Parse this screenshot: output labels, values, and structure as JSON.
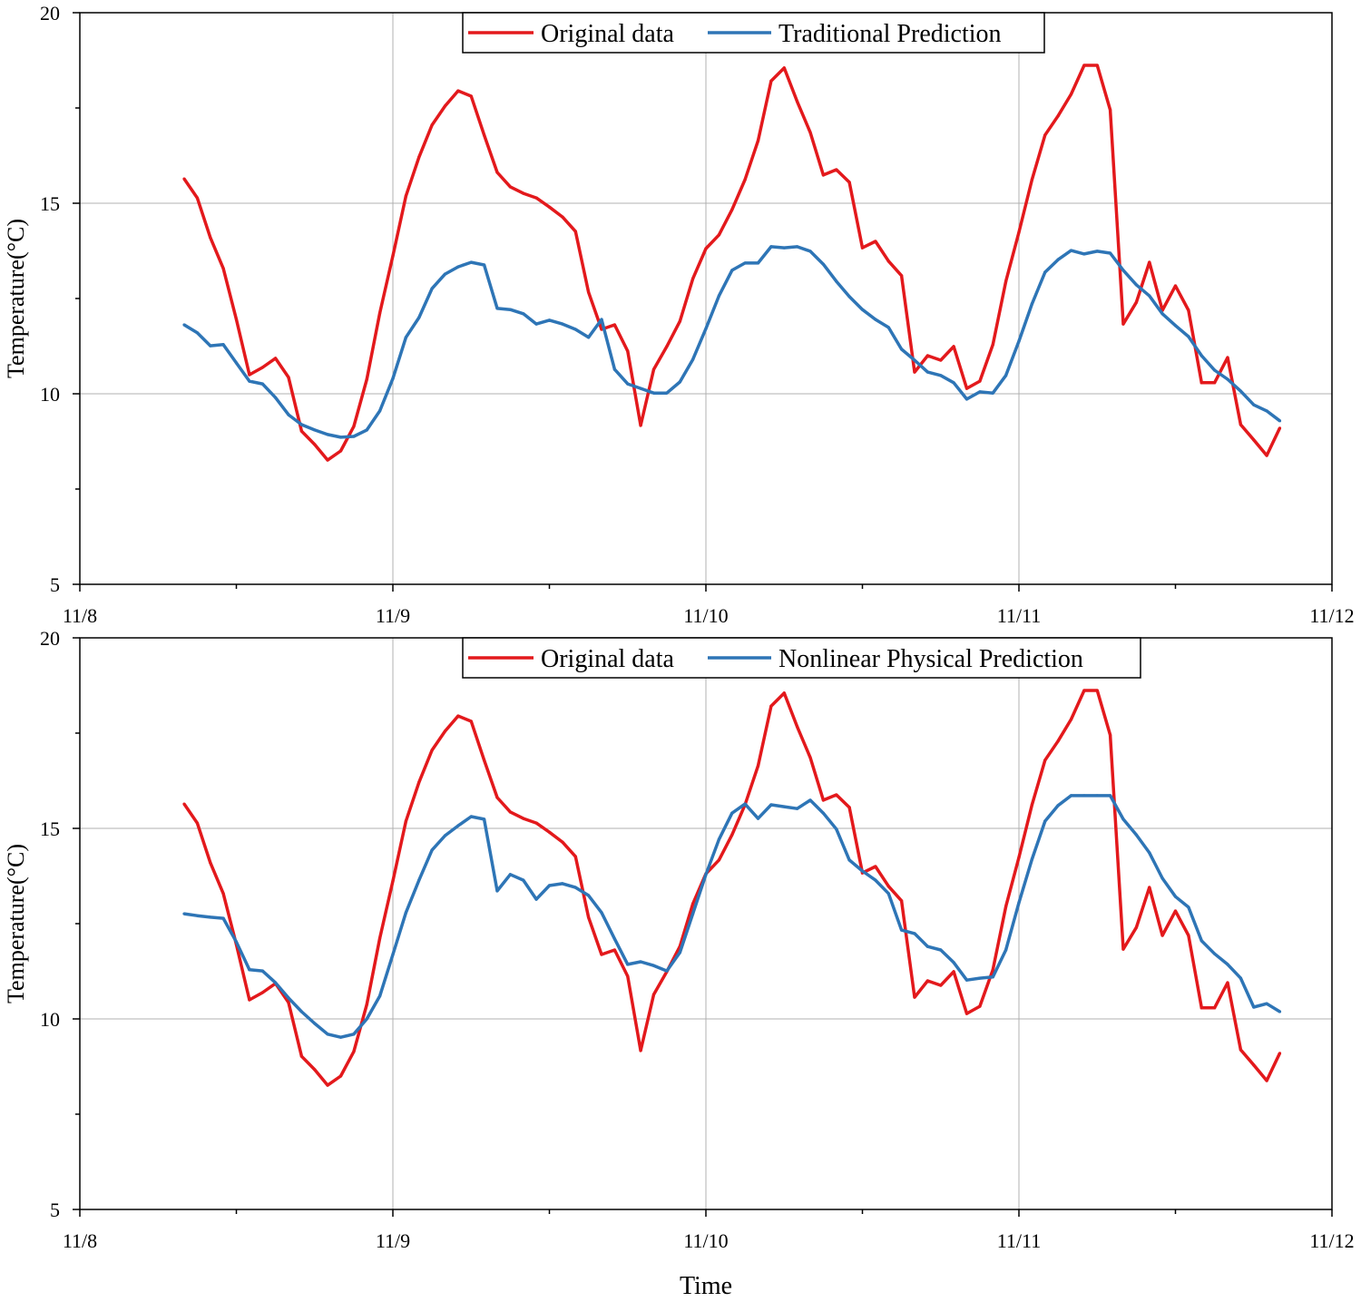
{
  "colors": {
    "original": "#e3191c",
    "prediction": "#2e75b6",
    "grid": "#b0b0b0",
    "axis": "#000000"
  },
  "shared": {
    "ylabel": "Temperature(°C)",
    "xlabel": "Time",
    "x_ticks": [
      "11/8",
      "11/9",
      "11/10",
      "11/11",
      "11/12"
    ],
    "y_ticks": [
      5,
      10,
      15,
      20
    ],
    "ylim": [
      5,
      20
    ],
    "xlim": [
      "11/8 00:00",
      "11/12 00:00"
    ],
    "x": [
      "11/8 08:00",
      "11/8 09:00",
      "11/8 10:00",
      "11/8 11:00",
      "11/8 12:00",
      "11/8 13:00",
      "11/8 14:00",
      "11/8 15:00",
      "11/8 16:00",
      "11/8 17:00",
      "11/8 18:00",
      "11/8 19:00",
      "11/8 20:00",
      "11/8 21:00",
      "11/8 22:00",
      "11/8 23:00",
      "11/9 00:00",
      "11/9 01:00",
      "11/9 02:00",
      "11/9 03:00",
      "11/9 04:00",
      "11/9 05:00",
      "11/9 06:00",
      "11/9 07:00",
      "11/9 08:00",
      "11/9 09:00",
      "11/9 10:00",
      "11/9 11:00",
      "11/9 12:00",
      "11/9 13:00",
      "11/9 14:00",
      "11/9 15:00",
      "11/9 16:00",
      "11/9 17:00",
      "11/9 18:00",
      "11/9 19:00",
      "11/9 20:00",
      "11/9 21:00",
      "11/9 22:00",
      "11/9 23:00",
      "11/10 00:00",
      "11/10 01:00",
      "11/10 02:00",
      "11/10 03:00",
      "11/10 04:00",
      "11/10 05:00",
      "11/10 06:00",
      "11/10 07:00",
      "11/10 08:00",
      "11/10 09:00",
      "11/10 10:00",
      "11/10 11:00",
      "11/10 12:00",
      "11/10 13:00",
      "11/10 14:00",
      "11/10 15:00",
      "11/10 16:00",
      "11/10 17:00",
      "11/10 18:00",
      "11/10 19:00",
      "11/10 20:00",
      "11/10 21:00",
      "11/10 22:00",
      "11/10 23:00",
      "11/11 00:00",
      "11/11 01:00",
      "11/11 02:00",
      "11/11 03:00",
      "11/11 04:00",
      "11/11 05:00",
      "11/11 06:00",
      "11/11 07:00",
      "11/11 08:00",
      "11/11 09:00",
      "11/11 10:00",
      "11/11 11:00",
      "11/11 12:00",
      "11/11 13:00",
      "11/11 14:00",
      "11/11 15:00",
      "11/11 16:00",
      "11/11 17:00",
      "11/11 18:00",
      "11/11 19:00",
      "11/11 20:00"
    ]
  },
  "chart_data": [
    {
      "type": "line",
      "grid": true,
      "legend": "top-center",
      "series": [
        {
          "name": "Original data",
          "values": [
            15.64,
            15.14,
            14.1,
            13.29,
            11.95,
            10.5,
            10.69,
            10.93,
            10.43,
            9.02,
            8.67,
            8.26,
            8.5,
            9.14,
            10.38,
            12.12,
            13.62,
            15.19,
            16.21,
            17.05,
            17.55,
            17.95,
            17.81,
            16.79,
            15.81,
            15.43,
            15.26,
            15.14,
            14.9,
            14.64,
            14.26,
            12.67,
            11.69,
            11.81,
            11.12,
            9.17,
            10.64,
            11.24,
            11.9,
            13.02,
            13.81,
            14.17,
            14.83,
            15.62,
            16.64,
            18.21,
            18.55,
            17.67,
            16.86,
            15.74,
            15.88,
            15.55,
            13.83,
            14.0,
            13.48,
            13.1,
            10.57,
            11.0,
            10.88,
            11.24,
            10.14,
            10.33,
            11.29,
            12.95,
            14.24,
            15.62,
            16.79,
            17.29,
            17.86,
            18.62,
            18.62,
            17.45,
            11.83,
            12.4,
            13.45,
            12.19,
            12.83,
            12.19,
            10.29,
            10.29,
            10.95,
            9.19,
            8.79,
            8.38,
            9.1
          ]
        },
        {
          "name": "Traditional Prediction",
          "values": [
            11.81,
            11.6,
            11.26,
            11.29,
            10.81,
            10.33,
            10.26,
            9.9,
            9.45,
            9.19,
            9.05,
            8.93,
            8.86,
            8.88,
            9.05,
            9.55,
            10.4,
            11.48,
            12.0,
            12.76,
            13.14,
            13.33,
            13.45,
            13.38,
            12.24,
            12.21,
            12.1,
            11.83,
            11.93,
            11.83,
            11.69,
            11.48,
            11.95,
            10.64,
            10.26,
            10.14,
            10.02,
            10.02,
            10.31,
            10.9,
            11.71,
            12.57,
            13.24,
            13.43,
            13.43,
            13.86,
            13.83,
            13.86,
            13.74,
            13.4,
            12.95,
            12.55,
            12.21,
            11.95,
            11.74,
            11.17,
            10.88,
            10.57,
            10.48,
            10.29,
            9.86,
            10.05,
            10.02,
            10.48,
            11.38,
            12.36,
            13.19,
            13.52,
            13.76,
            13.67,
            13.74,
            13.69,
            13.24,
            12.86,
            12.57,
            12.1,
            11.79,
            11.5,
            11.0,
            10.62,
            10.38,
            10.07,
            9.71,
            9.55,
            9.29
          ]
        }
      ]
    },
    {
      "type": "line",
      "grid": true,
      "legend": "top-center",
      "series": [
        {
          "name": "Original data",
          "values": [
            15.64,
            15.14,
            14.1,
            13.29,
            11.95,
            10.5,
            10.69,
            10.93,
            10.43,
            9.02,
            8.67,
            8.26,
            8.5,
            9.14,
            10.38,
            12.12,
            13.62,
            15.19,
            16.21,
            17.05,
            17.55,
            17.95,
            17.81,
            16.79,
            15.81,
            15.43,
            15.26,
            15.14,
            14.9,
            14.64,
            14.26,
            12.67,
            11.69,
            11.81,
            11.12,
            9.17,
            10.64,
            11.24,
            11.9,
            13.02,
            13.81,
            14.17,
            14.83,
            15.62,
            16.64,
            18.21,
            18.55,
            17.67,
            16.86,
            15.74,
            15.88,
            15.55,
            13.83,
            14.0,
            13.48,
            13.1,
            10.57,
            11.0,
            10.88,
            11.24,
            10.14,
            10.33,
            11.29,
            12.95,
            14.24,
            15.62,
            16.79,
            17.29,
            17.86,
            18.62,
            18.62,
            17.45,
            11.83,
            12.4,
            13.45,
            12.19,
            12.83,
            12.19,
            10.29,
            10.29,
            10.95,
            9.19,
            8.79,
            8.38,
            9.1
          ]
        },
        {
          "name": "Nonlinear Physical Prediction",
          "values": [
            12.76,
            12.71,
            12.67,
            12.64,
            12.02,
            11.29,
            11.26,
            10.95,
            10.55,
            10.19,
            9.88,
            9.6,
            9.52,
            9.6,
            10.0,
            10.6,
            11.69,
            12.79,
            13.64,
            14.43,
            14.81,
            15.07,
            15.31,
            15.24,
            13.36,
            13.79,
            13.64,
            13.14,
            13.5,
            13.55,
            13.45,
            13.24,
            12.79,
            12.1,
            11.43,
            11.5,
            11.4,
            11.26,
            11.74,
            12.76,
            13.79,
            14.71,
            15.4,
            15.64,
            15.26,
            15.62,
            15.57,
            15.52,
            15.74,
            15.4,
            14.98,
            14.17,
            13.88,
            13.64,
            13.29,
            12.33,
            12.24,
            11.9,
            11.81,
            11.48,
            11.02,
            11.07,
            11.1,
            11.81,
            13.05,
            14.19,
            15.19,
            15.6,
            15.86,
            15.86,
            15.86,
            15.86,
            15.24,
            14.83,
            14.36,
            13.69,
            13.21,
            12.93,
            12.05,
            11.71,
            11.43,
            11.07,
            10.31,
            10.4,
            10.19
          ]
        }
      ]
    }
  ]
}
